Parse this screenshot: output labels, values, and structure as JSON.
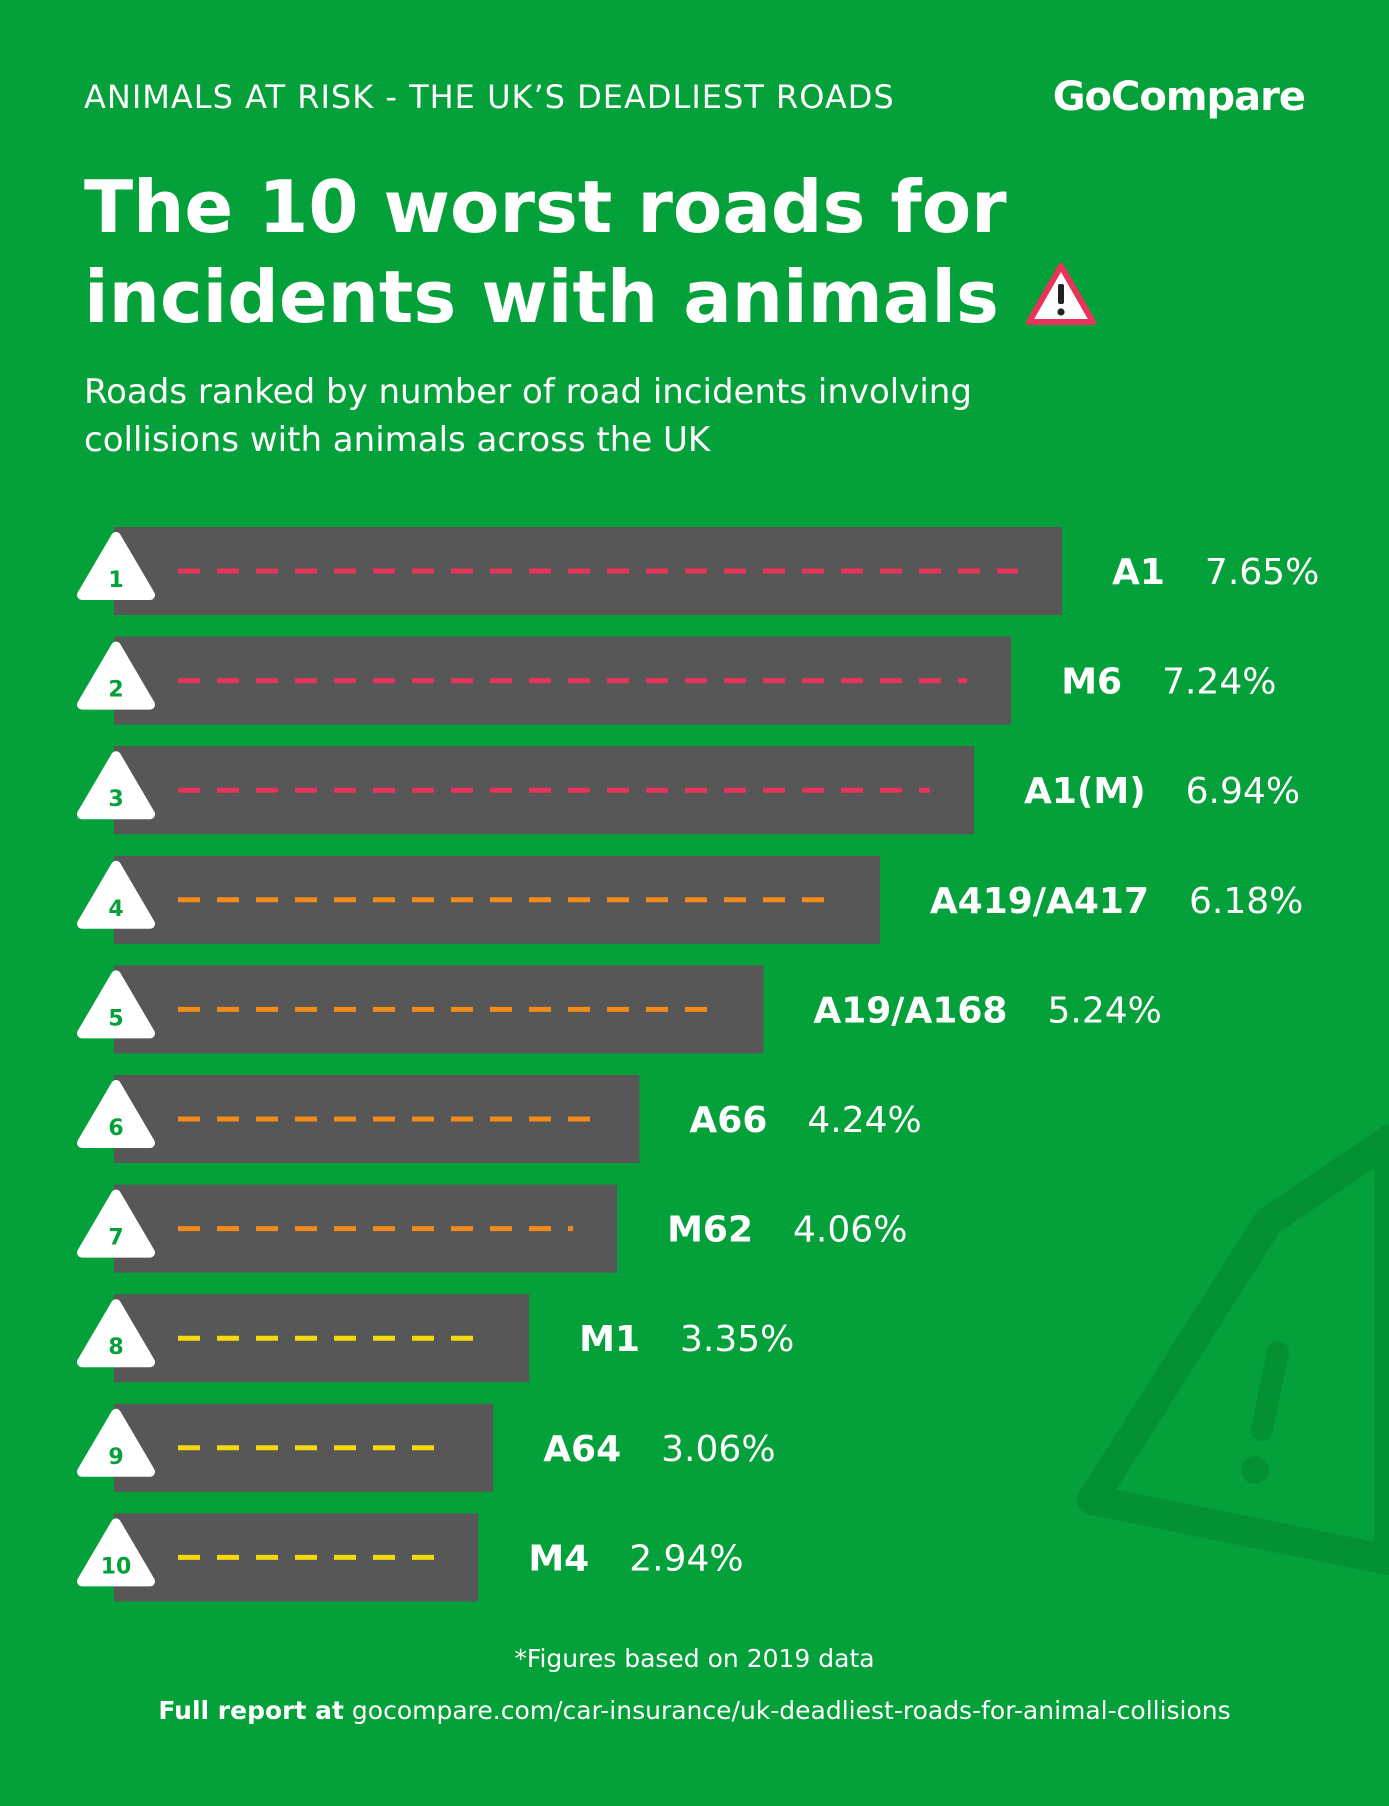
{
  "header": {
    "kicker": "ANIMALS AT RISK - THE UK’S DEADLIEST ROADS",
    "brand": "GoCompare",
    "title_line1": "The 10 worst roads for",
    "title_line2": "incidents with animals",
    "subtitle_line1": "Roads ranked by number of road incidents involving",
    "subtitle_line2": "collisions with animals across the UK",
    "warning_icon": "warning-triangle-icon"
  },
  "colors": {
    "background": "#04a03a",
    "bar": "#575757",
    "dash_high": "#e8335a",
    "dash_mid": "#f28b1a",
    "dash_low": "#f5d90f",
    "badge_text": "#04a03a"
  },
  "chart_data": {
    "type": "bar",
    "orientation": "horizontal",
    "ranks": [
      "1",
      "2",
      "3",
      "4",
      "5",
      "6",
      "7",
      "8",
      "9",
      "10"
    ],
    "categories": [
      "A1",
      "M6",
      "A1(M)",
      "A419/A417",
      "A19/A168",
      "A66",
      "M62",
      "M1",
      "A64",
      "M4"
    ],
    "values": [
      7.65,
      7.24,
      6.94,
      6.18,
      5.24,
      4.24,
      4.06,
      3.35,
      3.06,
      2.94
    ],
    "value_labels": [
      "7.65%",
      "7.24%",
      "6.94%",
      "6.18%",
      "5.24%",
      "4.24%",
      "4.06%",
      "3.35%",
      "3.06%",
      "2.94%"
    ],
    "dash_level": [
      "high",
      "high",
      "high",
      "mid",
      "mid",
      "mid",
      "mid",
      "low",
      "low",
      "low"
    ],
    "grid": false,
    "legend": "none"
  },
  "footer": {
    "footnote": "*Figures based on 2019 data",
    "source_prefix": "Full report at",
    "source_url": "gocompare.com/car-insurance/uk-deadliest-roads-for-animal-collisions"
  }
}
